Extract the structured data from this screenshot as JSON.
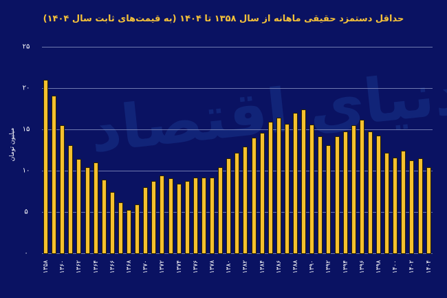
{
  "watermark": "دنیای اقتصاد",
  "colors": {
    "background": "#0a1262",
    "bar": "#f5c02f",
    "title": "#f4c13a",
    "grid": "#8a93c4"
  },
  "chart_data": {
    "type": "bar",
    "title": "حداقل دستمزد حقیقی ماهانه از سال ۱۳۵۸ تا ۱۴۰۴ (به قیمت‌های ثابت سال ۱۴۰۴)",
    "xlabel": "",
    "ylabel": "میلیون تومان",
    "ylim": [
      0,
      25
    ],
    "yticks": [
      0,
      5,
      10,
      15,
      20,
      25
    ],
    "ytick_labels": [
      "۰",
      "۵",
      "۱۰",
      "۱۵",
      "۲۰",
      "۲۵"
    ],
    "grid": true,
    "legend": null,
    "categories": [
      "1358",
      "1359",
      "1360",
      "1361",
      "1362",
      "1363",
      "1364",
      "1365",
      "1366",
      "1367",
      "1368",
      "1369",
      "1370",
      "1371",
      "1372",
      "1373",
      "1374",
      "1375",
      "1376",
      "1377",
      "1378",
      "1379",
      "1380",
      "1381",
      "1382",
      "1383",
      "1384",
      "1385",
      "1386",
      "1387",
      "1388",
      "1389",
      "1390",
      "1391",
      "1392",
      "1393",
      "1394",
      "1395",
      "1396",
      "1397",
      "1398",
      "1399",
      "1400",
      "1401",
      "1402",
      "1403",
      "1404"
    ],
    "xtick_labels": [
      "۱۳۵۸",
      "۱۳۶۰",
      "۱۳۶۲",
      "۱۳۶۴",
      "۱۳۶۶",
      "۱۳۶۸",
      "۱۳۷۰",
      "۱۳۷۲",
      "۱۳۷۴",
      "۱۳۷۶",
      "۱۳۷۸",
      "۱۳۸۰",
      "۱۳۸۲",
      "۱۳۸۴",
      "۱۳۸۶",
      "۱۳۸۸",
      "۱۳۹۰",
      "۱۳۹۲",
      "۱۳۹۴",
      "۱۳۹۶",
      "۱۳۹۸",
      "۱۴۰۰",
      "۱۴۰۲",
      "۱۴۰۴"
    ],
    "values": [
      20.9,
      19.0,
      15.4,
      13.0,
      11.3,
      10.3,
      10.9,
      8.8,
      7.3,
      6.1,
      5.2,
      5.8,
      7.9,
      8.7,
      9.3,
      9.0,
      8.3,
      8.7,
      9.1,
      9.1,
      9.1,
      10.3,
      11.4,
      12.1,
      12.8,
      13.9,
      14.5,
      15.8,
      16.3,
      15.6,
      16.9,
      17.3,
      15.5,
      14.1,
      13.0,
      14.1,
      14.7,
      15.4,
      16.1,
      14.7,
      14.2,
      12.1,
      11.5,
      12.3,
      11.2,
      11.4,
      10.3
    ]
  }
}
